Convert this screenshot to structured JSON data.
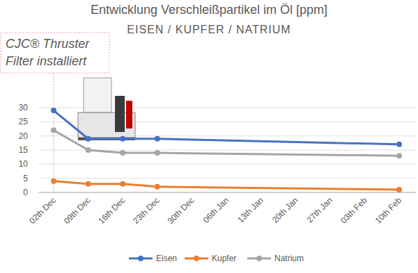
{
  "chart_data": {
    "type": "line",
    "title": "Entwicklung Verschleißpartikel im Öl [ppm]",
    "subtitle": "EISEN / KUPFER / NATRIUM",
    "annotation": [
      "CJC® Thruster",
      "Filter installiert"
    ],
    "categories": [
      "02th Dec",
      "09th Dec",
      "16th Dec",
      "23th Dec",
      "30th Dec",
      "06th Jan",
      "13th Jan",
      "20th Jan",
      "27th Jan",
      "03th Feb",
      "10th Feb"
    ],
    "series": [
      {
        "name": "Eisen",
        "color": "#4472c4",
        "values": [
          29,
          19,
          19,
          19,
          null,
          null,
          null,
          null,
          null,
          null,
          17
        ]
      },
      {
        "name": "Kupfer",
        "color": "#ed7d31",
        "values": [
          4,
          3,
          3,
          2,
          null,
          null,
          null,
          null,
          null,
          null,
          1
        ]
      },
      {
        "name": "Natrium",
        "color": "#a5a5a5",
        "values": [
          22,
          15,
          14,
          14,
          null,
          null,
          null,
          null,
          null,
          null,
          13
        ]
      }
    ],
    "ylim": [
      0,
      30
    ],
    "yticks": [
      0,
      5,
      10,
      15,
      20,
      25,
      30
    ],
    "grid": true,
    "legend": "bottom",
    "marker": "circle"
  }
}
